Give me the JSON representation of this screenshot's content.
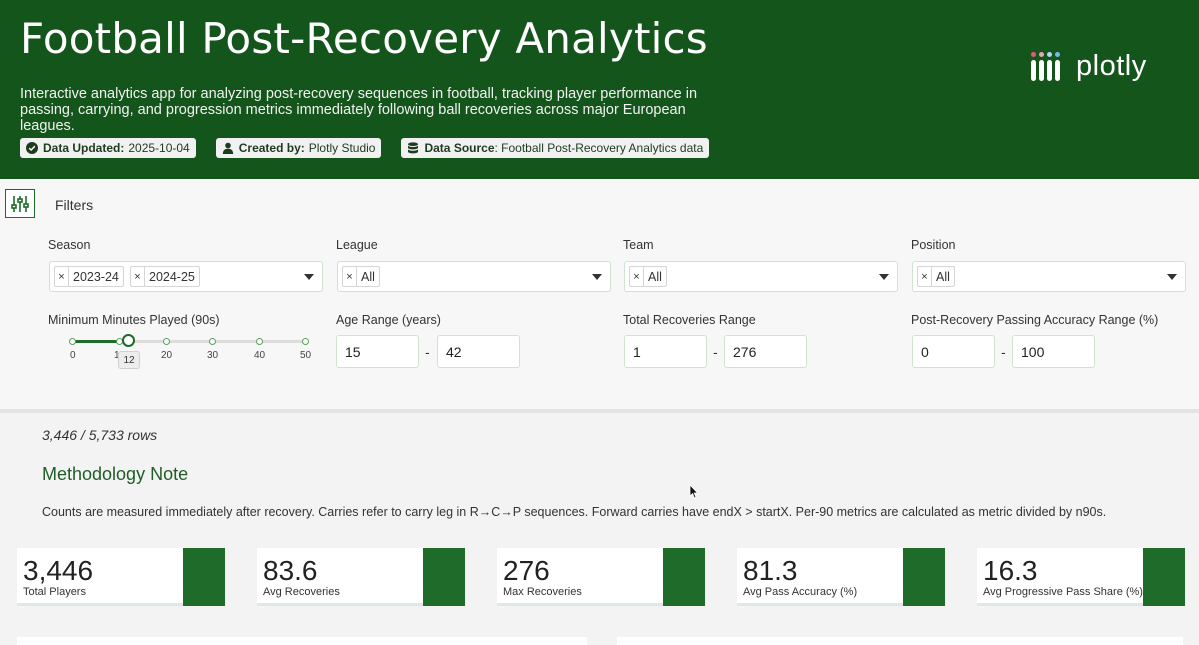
{
  "header": {
    "title": "Football Post-Recovery Analytics",
    "description": "Interactive analytics app for analyzing post-recovery sequences in football, tracking player performance in passing, carrying, and progression metrics immediately following ball recoveries across major European leagues.",
    "badges": [
      {
        "icon": "check-circle-icon",
        "label": "Data Updated:",
        "value": "2025-10-04"
      },
      {
        "icon": "user-icon",
        "label": "Created by:",
        "value": "Plotly Studio"
      },
      {
        "icon": "database-icon",
        "label": "Data Source",
        "value": ": Football Post-Recovery Analytics data"
      }
    ],
    "logo_text": "plotly",
    "bg_color": "#14551c"
  },
  "filters": {
    "title": "Filters",
    "season": {
      "label": "Season",
      "selected": [
        "2023-24",
        "2024-25"
      ]
    },
    "league": {
      "label": "League",
      "selected": [
        "All"
      ]
    },
    "team": {
      "label": "Team",
      "selected": [
        "All"
      ]
    },
    "position": {
      "label": "Position",
      "selected": [
        "All"
      ]
    },
    "minutes": {
      "label": "Minimum Minutes Played (90s)",
      "value": "12",
      "ticks": [
        "0",
        "10",
        "20",
        "30",
        "40",
        "50"
      ],
      "min": 0,
      "max": 50,
      "current": 12
    },
    "age": {
      "label": "Age Range (years)",
      "min": "15",
      "max": "42"
    },
    "recoveries": {
      "label": "Total Recoveries Range",
      "min": "1",
      "max": "276"
    },
    "passing": {
      "label": "Post-Recovery Passing Accuracy Range (%)",
      "min": "0",
      "max": "100"
    },
    "range_separator": "-"
  },
  "rows_count": "3,446 / 5,733 rows",
  "methodology": {
    "title": "Methodology Note",
    "text": "Counts are measured immediately after recovery. Carries refer to carry leg in R→C→P sequences. Forward carries have endX > startX. Per-90 metrics are calculated as metric divided by n90s."
  },
  "kpis": [
    {
      "value": "3,446",
      "label": "Total Players"
    },
    {
      "value": "83.6",
      "label": "Avg Recoveries"
    },
    {
      "value": "276",
      "label": "Max Recoveries"
    },
    {
      "value": "81.3",
      "label": "Avg Pass Accuracy (%)"
    },
    {
      "value": "16.3",
      "label": "Avg Progressive Pass Share (%)"
    }
  ],
  "accent_color": "#1e6b2a"
}
